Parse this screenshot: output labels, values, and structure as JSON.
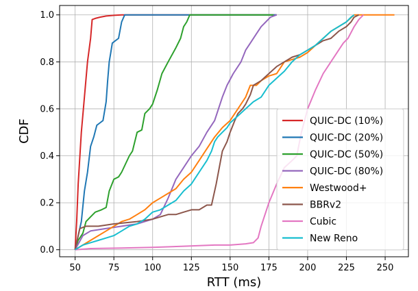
{
  "chart_data": {
    "type": "line",
    "title": "",
    "xlabel": "RTT (ms)",
    "ylabel": "CDF",
    "xlim": [
      40,
      265
    ],
    "ylim": [
      -0.03,
      1.04
    ],
    "xticks": [
      50,
      75,
      100,
      125,
      150,
      175,
      200,
      225,
      250
    ],
    "yticks": [
      0.0,
      0.2,
      0.4,
      0.6,
      0.8,
      1.0
    ],
    "grid": true,
    "legend_position": "lower-right",
    "series": [
      {
        "name": "QUIC-DC (10%)",
        "color": "#d62728",
        "x": [
          50,
          51,
          52,
          54,
          56,
          58,
          60,
          61,
          63,
          66,
          70,
          75,
          80,
          180
        ],
        "y": [
          0.0,
          0.12,
          0.28,
          0.5,
          0.65,
          0.8,
          0.9,
          0.98,
          0.985,
          0.99,
          0.995,
          0.998,
          1.0,
          1.0
        ]
      },
      {
        "name": "QUIC-DC (20%)",
        "color": "#1f77b4",
        "x": [
          50,
          52,
          54,
          56,
          58,
          60,
          62,
          64,
          66,
          68,
          70,
          71,
          72,
          73,
          74,
          76,
          78,
          80,
          82,
          180
        ],
        "y": [
          0.0,
          0.06,
          0.12,
          0.25,
          0.33,
          0.44,
          0.48,
          0.53,
          0.54,
          0.55,
          0.63,
          0.72,
          0.8,
          0.84,
          0.88,
          0.89,
          0.9,
          0.97,
          1.0,
          1.0
        ]
      },
      {
        "name": "QUIC-DC (50%)",
        "color": "#2ca02c",
        "x": [
          50,
          52,
          55,
          57,
          60,
          63,
          67,
          70,
          72,
          75,
          78,
          80,
          85,
          87,
          90,
          93,
          95,
          98,
          100,
          103,
          106,
          110,
          115,
          118,
          120,
          122,
          124,
          178
        ],
        "y": [
          0.0,
          0.04,
          0.07,
          0.12,
          0.14,
          0.16,
          0.17,
          0.18,
          0.25,
          0.3,
          0.31,
          0.33,
          0.4,
          0.42,
          0.5,
          0.51,
          0.58,
          0.6,
          0.62,
          0.68,
          0.75,
          0.8,
          0.86,
          0.9,
          0.95,
          0.97,
          1.0,
          1.0
        ]
      },
      {
        "name": "QUIC-DC (80%)",
        "color": "#9467bd",
        "x": [
          50,
          55,
          60,
          70,
          80,
          90,
          100,
          105,
          110,
          115,
          120,
          125,
          130,
          135,
          140,
          145,
          148,
          152,
          157,
          160,
          163,
          167,
          170,
          173,
          176,
          180
        ],
        "y": [
          0.0,
          0.06,
          0.08,
          0.09,
          0.1,
          0.11,
          0.13,
          0.15,
          0.22,
          0.3,
          0.35,
          0.4,
          0.44,
          0.5,
          0.55,
          0.65,
          0.7,
          0.75,
          0.8,
          0.85,
          0.88,
          0.92,
          0.95,
          0.97,
          0.99,
          1.0
        ]
      },
      {
        "name": "Westwood+",
        "color": "#ff7f0e",
        "x": [
          50,
          55,
          60,
          65,
          70,
          75,
          80,
          85,
          90,
          95,
          100,
          105,
          110,
          115,
          120,
          125,
          130,
          135,
          140,
          145,
          150,
          155,
          160,
          163,
          167,
          170,
          175,
          180,
          185,
          190,
          195,
          200,
          205,
          210,
          215,
          220,
          225,
          230,
          240,
          256
        ],
        "y": [
          0.0,
          0.02,
          0.04,
          0.06,
          0.08,
          0.1,
          0.12,
          0.13,
          0.15,
          0.17,
          0.2,
          0.22,
          0.24,
          0.26,
          0.3,
          0.33,
          0.38,
          0.43,
          0.48,
          0.52,
          0.55,
          0.6,
          0.65,
          0.7,
          0.7,
          0.72,
          0.74,
          0.75,
          0.8,
          0.81,
          0.82,
          0.84,
          0.87,
          0.9,
          0.93,
          0.95,
          0.97,
          1.0,
          1.0,
          1.0
        ]
      },
      {
        "name": "BBRv2",
        "color": "#8c564b",
        "x": [
          50,
          53,
          57,
          65,
          75,
          90,
          100,
          105,
          110,
          115,
          120,
          125,
          130,
          135,
          138,
          141,
          143,
          145,
          148,
          150,
          153,
          155,
          158,
          160,
          163,
          165,
          170,
          175,
          180,
          185,
          190,
          195,
          200,
          205,
          210,
          215,
          220,
          225,
          228,
          230,
          233
        ],
        "y": [
          0.0,
          0.09,
          0.1,
          0.1,
          0.11,
          0.12,
          0.13,
          0.14,
          0.15,
          0.15,
          0.16,
          0.17,
          0.17,
          0.19,
          0.19,
          0.28,
          0.35,
          0.42,
          0.46,
          0.5,
          0.55,
          0.58,
          0.6,
          0.62,
          0.66,
          0.7,
          0.72,
          0.75,
          0.78,
          0.8,
          0.82,
          0.83,
          0.85,
          0.87,
          0.89,
          0.9,
          0.93,
          0.95,
          0.97,
          0.99,
          1.0
        ]
      },
      {
        "name": "Cubic",
        "color": "#e377c2",
        "x": [
          50,
          60,
          80,
          100,
          120,
          140,
          150,
          160,
          165,
          168,
          170,
          175,
          180,
          185,
          190,
          193,
          196,
          200,
          205,
          210,
          215,
          220,
          223,
          226,
          230,
          233,
          236
        ],
        "y": [
          0.0,
          0.005,
          0.007,
          0.01,
          0.015,
          0.02,
          0.02,
          0.025,
          0.03,
          0.05,
          0.1,
          0.2,
          0.28,
          0.35,
          0.38,
          0.4,
          0.5,
          0.6,
          0.68,
          0.75,
          0.8,
          0.85,
          0.88,
          0.9,
          0.95,
          0.98,
          1.0
        ]
      },
      {
        "name": "New Reno",
        "color": "#17becf",
        "x": [
          50,
          55,
          60,
          65,
          70,
          75,
          80,
          85,
          90,
          95,
          100,
          105,
          110,
          115,
          120,
          125,
          130,
          135,
          138,
          140,
          142,
          145,
          148,
          150,
          155,
          160,
          165,
          170,
          175,
          180,
          185,
          190,
          195,
          200,
          205,
          210,
          215,
          220,
          225,
          228,
          230
        ],
        "y": [
          0.0,
          0.02,
          0.03,
          0.04,
          0.05,
          0.06,
          0.08,
          0.1,
          0.11,
          0.13,
          0.16,
          0.17,
          0.19,
          0.21,
          0.25,
          0.28,
          0.33,
          0.38,
          0.42,
          0.46,
          0.48,
          0.5,
          0.52,
          0.54,
          0.57,
          0.6,
          0.63,
          0.65,
          0.7,
          0.73,
          0.76,
          0.8,
          0.83,
          0.85,
          0.87,
          0.9,
          0.93,
          0.95,
          0.97,
          0.99,
          1.0
        ]
      }
    ]
  }
}
